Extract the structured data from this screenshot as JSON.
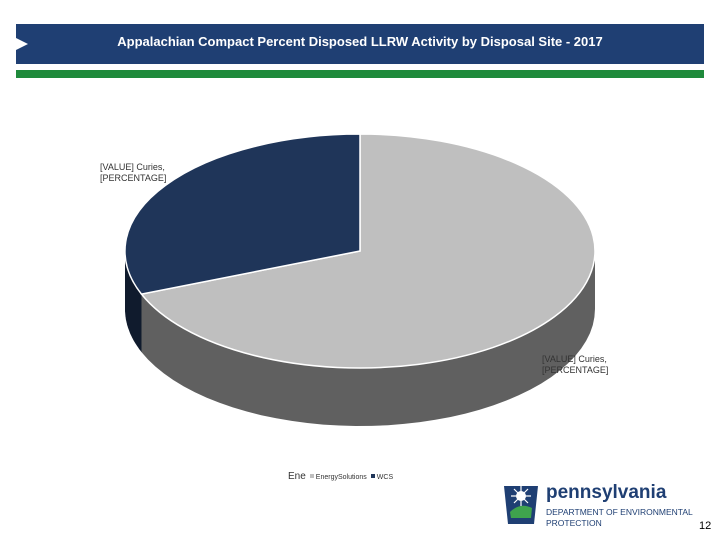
{
  "header": {
    "title": "Appalachian Compact Percent Disposed LLRW Activity by Disposal Site - 2017"
  },
  "chart_data": {
    "type": "pie",
    "title": "",
    "categories": [
      "EnergySolutions",
      "WCS"
    ],
    "values": [
      69,
      31
    ],
    "colors": [
      "#bfbfbf",
      "#1f3559"
    ],
    "data_labels": [
      "[VALUE] Curies, [PERCENTAGE]",
      "[VALUE] Curies, [PERCENTAGE]"
    ],
    "legend_position": "bottom",
    "style": "3d"
  },
  "legend": {
    "items": [
      {
        "label": "Ene",
        "small_label": "EnergySolutions",
        "color": "#bfbfbf"
      },
      {
        "label": "",
        "small_label": "WCS",
        "color": "#1f3559"
      }
    ]
  },
  "footer": {
    "logo_name": "pennsylvania",
    "logo_subtitle": "DEPARTMENT OF ENVIRONMENTAL PROTECTION",
    "page_number": "12"
  }
}
